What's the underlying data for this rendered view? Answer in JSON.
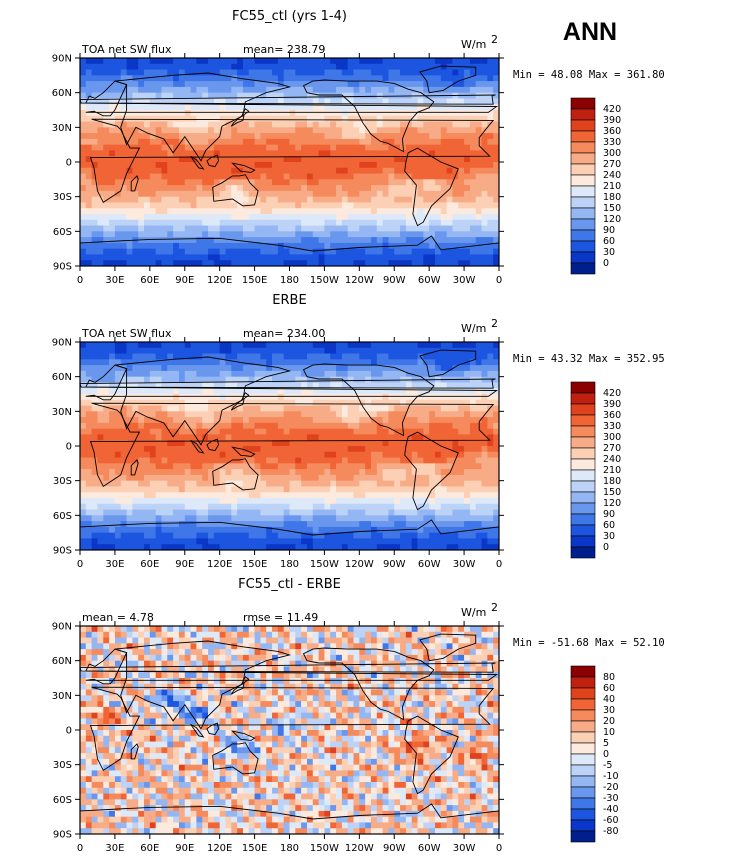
{
  "season_label": "ANN",
  "units_label": "W/m",
  "units_exponent": "2",
  "lat_ticks": [
    "90N",
    "60N",
    "30N",
    "0",
    "30S",
    "60S",
    "90S"
  ],
  "lon_ticks": [
    "0",
    "30E",
    "60E",
    "90E",
    "120E",
    "150E",
    "180",
    "150W",
    "120W",
    "90W",
    "60W",
    "30W",
    "0"
  ],
  "chart_data": [
    {
      "type": "heatmap",
      "title": "FC55_ctl (yrs 1-4)",
      "variable": "TOA net SW flux",
      "stat_left": "mean= 238.79",
      "stat_right": "",
      "min_max": "Min =  48.08 Max = 361.80",
      "field": "model",
      "colorbar_levels": [
        "420",
        "390",
        "360",
        "330",
        "300",
        "270",
        "240",
        "210",
        "180",
        "150",
        "120",
        "90",
        "60",
        "30",
        "0"
      ],
      "colorbar_colors": [
        "#8b0000",
        "#c0200f",
        "#e0421e",
        "#f06436",
        "#f58a5c",
        "#f7ab86",
        "#fbd0b4",
        "#fdeade",
        "#dde9f9",
        "#bcd2f7",
        "#94b6f3",
        "#6a97ee",
        "#3f76e8",
        "#1c55e0",
        "#0a37c8",
        "#001f8c"
      ]
    },
    {
      "type": "heatmap",
      "title": "ERBE",
      "variable": "TOA net SW flux",
      "stat_left": "mean= 234.00",
      "stat_right": "",
      "min_max": "Min =  43.32 Max = 352.95",
      "field": "obs",
      "colorbar_levels": [
        "420",
        "390",
        "360",
        "330",
        "300",
        "270",
        "240",
        "210",
        "180",
        "150",
        "120",
        "90",
        "60",
        "30",
        "0"
      ],
      "colorbar_colors": [
        "#8b0000",
        "#c0200f",
        "#e0421e",
        "#f06436",
        "#f58a5c",
        "#f7ab86",
        "#fbd0b4",
        "#fdeade",
        "#dde9f9",
        "#bcd2f7",
        "#94b6f3",
        "#6a97ee",
        "#3f76e8",
        "#1c55e0",
        "#0a37c8",
        "#001f8c"
      ]
    },
    {
      "type": "heatmap",
      "title": "FC55_ctl - ERBE",
      "variable": "",
      "stat_left": "mean =    4.78",
      "stat_right": "rmse =   11.49",
      "min_max": "Min = -51.68 Max =  52.10",
      "field": "diff",
      "colorbar_levels": [
        "80",
        "60",
        "40",
        "30",
        "20",
        "10",
        "5",
        "0",
        "-5",
        "-10",
        "-20",
        "-30",
        "-40",
        "-60",
        "-80"
      ],
      "colorbar_colors": [
        "#8b0000",
        "#c0200f",
        "#e0421e",
        "#f06436",
        "#f58a5c",
        "#f7ab86",
        "#fbd0b4",
        "#fdeade",
        "#dde9f9",
        "#bcd2f7",
        "#94b6f3",
        "#6a97ee",
        "#3f76e8",
        "#1c55e0",
        "#0a37c8",
        "#001f8c"
      ]
    }
  ]
}
